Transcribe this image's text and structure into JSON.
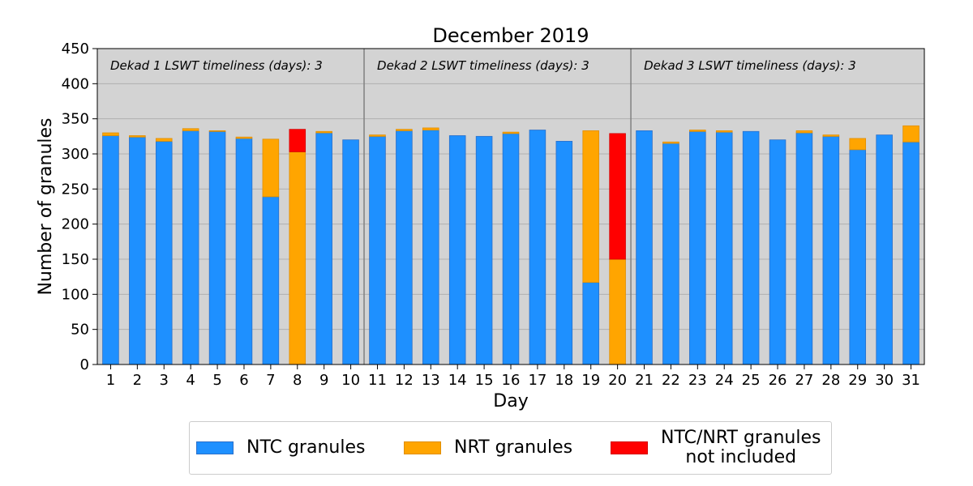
{
  "chart_data": {
    "type": "bar",
    "stacked": true,
    "title": "December 2019",
    "xlabel": "Day",
    "ylabel": "Number of granules",
    "ylim": [
      0,
      450
    ],
    "yticks": [
      0,
      50,
      100,
      150,
      200,
      250,
      300,
      350,
      400,
      450
    ],
    "grid": true,
    "legend_position": "bottom",
    "categories": [
      "1",
      "2",
      "3",
      "4",
      "5",
      "6",
      "7",
      "8",
      "9",
      "10",
      "11",
      "12",
      "13",
      "14",
      "15",
      "16",
      "17",
      "18",
      "19",
      "20",
      "21",
      "22",
      "23",
      "24",
      "25",
      "26",
      "27",
      "28",
      "29",
      "30",
      "31"
    ],
    "series": [
      {
        "name": "NTC granules",
        "color": "#1E90FF",
        "values": [
          326,
          324,
          318,
          333,
          332,
          322,
          239,
          0,
          330,
          320,
          325,
          333,
          334,
          326,
          325,
          329,
          334,
          318,
          117,
          0,
          333,
          315,
          332,
          331,
          332,
          320,
          330,
          325,
          306,
          327,
          317
        ]
      },
      {
        "name": "NRT granules",
        "color": "#FFA500",
        "values": [
          4,
          2,
          4,
          3,
          1,
          2,
          82,
          303,
          2,
          0,
          2,
          2,
          3,
          0,
          0,
          2,
          0,
          0,
          216,
          150,
          0,
          2,
          2,
          2,
          0,
          0,
          3,
          2,
          16,
          0,
          23
        ]
      },
      {
        "name": "NTC/NRT granules\nnot included",
        "color": "#FF0000",
        "values": [
          0,
          0,
          0,
          0,
          0,
          0,
          0,
          32,
          0,
          0,
          0,
          0,
          0,
          0,
          0,
          0,
          0,
          0,
          0,
          179,
          0,
          0,
          0,
          0,
          0,
          0,
          0,
          0,
          0,
          0,
          0
        ]
      }
    ],
    "annotations": [
      {
        "text": "Dekad 1 LSWT timeliness (days): 3",
        "start_day": 1
      },
      {
        "text": "Dekad 2 LSWT timeliness (days): 3",
        "start_day": 11
      },
      {
        "text": "Dekad 3 LSWT timeliness (days): 3",
        "start_day": 21
      }
    ],
    "dekad_dividers_after_day": [
      10,
      20
    ],
    "plot_background": "#D3D3D3"
  }
}
